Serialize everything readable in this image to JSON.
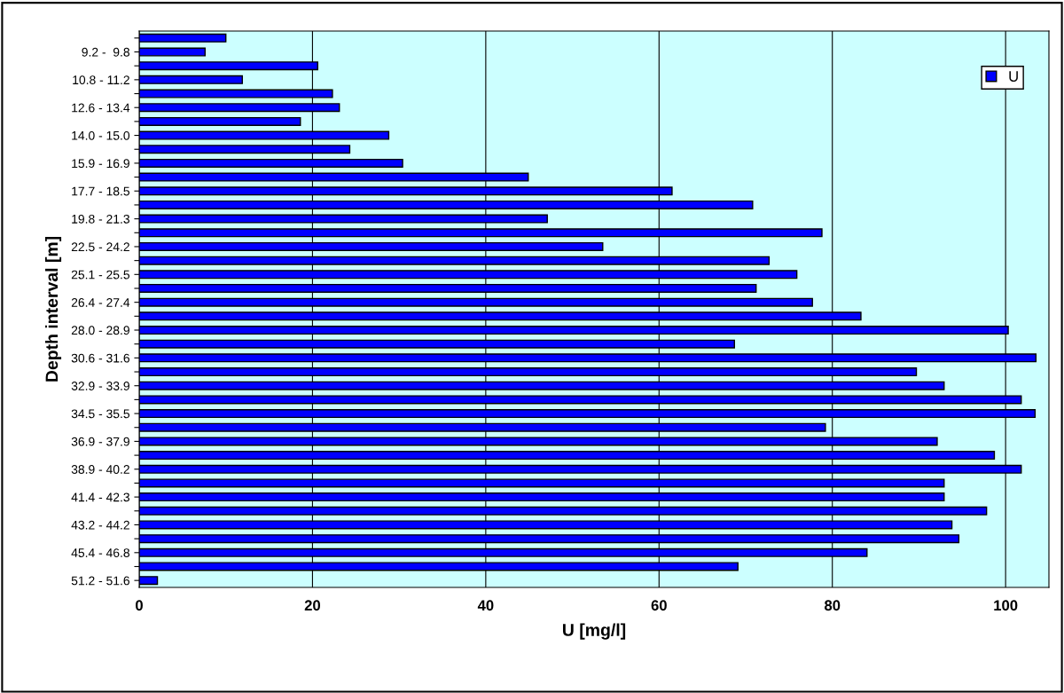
{
  "chart_data": {
    "type": "bar",
    "orientation": "horizontal",
    "xlabel": "U [mg/l]",
    "ylabel": "Depth interval [m]",
    "categories": [
      null,
      "9.2 -  9.8",
      null,
      "10.8 - 11.2",
      null,
      "12.6 - 13.4",
      null,
      "14.0 - 15.0",
      null,
      "15.9 - 16.9",
      null,
      "17.7 - 18.5",
      null,
      "19.8 - 21.3",
      null,
      "22.5 - 24.2",
      null,
      "25.1 - 25.5",
      null,
      "26.4 - 27.4",
      null,
      "28.0 - 28.9",
      null,
      "30.6 - 31.6",
      null,
      "32.9 - 33.9",
      null,
      "34.5 - 35.5",
      null,
      "36.9 - 37.9",
      null,
      "38.9 - 40.2",
      null,
      "41.4 - 42.3",
      null,
      "43.2 - 44.2",
      null,
      "45.4 - 46.8",
      null,
      "51.2 - 51.6"
    ],
    "series": [
      {
        "name": "U",
        "color": "#0000ff",
        "values": [
          10.0,
          7.6,
          20.6,
          11.9,
          22.3,
          23.1,
          18.6,
          28.8,
          24.3,
          30.4,
          44.9,
          61.5,
          70.8,
          47.1,
          78.8,
          53.5,
          72.7,
          75.9,
          71.2,
          77.7,
          83.3,
          100.3,
          68.7,
          103.5,
          89.7,
          92.9,
          101.8,
          103.4,
          79.2,
          92.1,
          98.7,
          101.8,
          92.9,
          92.9,
          97.8,
          93.8,
          94.6,
          84.0,
          69.1,
          2.1
        ]
      }
    ],
    "xlim": [
      0,
      105
    ],
    "xticks": [
      0,
      20,
      40,
      60,
      80,
      100
    ],
    "grid": "x",
    "legend": "top right"
  }
}
